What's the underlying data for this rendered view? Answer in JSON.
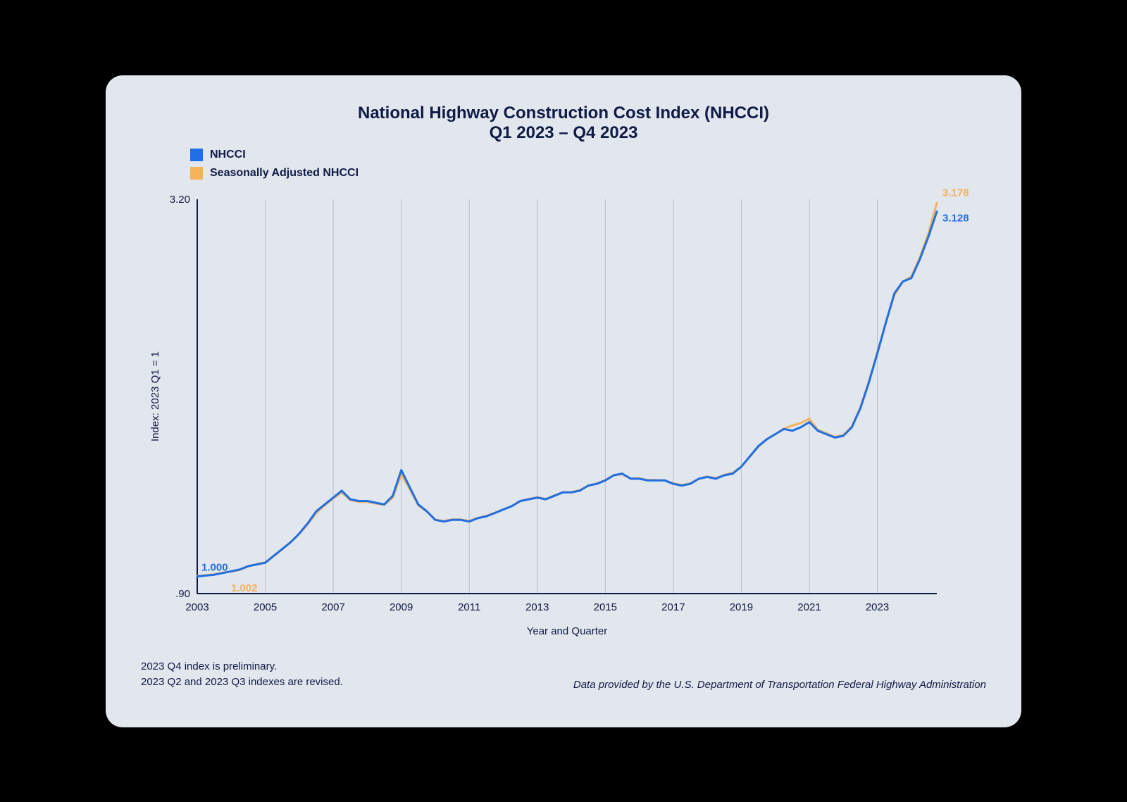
{
  "title": {
    "line1": "National Highway Construction Cost Index (NHCCI)",
    "line2": "Q1 2023 – Q4 2023",
    "fontsize": 24,
    "color": "#0f1b47"
  },
  "legend": {
    "items": [
      {
        "label": "NHCCI",
        "color": "#1f6fe5"
      },
      {
        "label": "Seasonally Adjusted NHCCI",
        "color": "#f4b25a"
      }
    ]
  },
  "chart": {
    "type": "line",
    "background_color": "#e2e6ed",
    "axis_color": "#0f1b47",
    "grid_color": "#b8bfca",
    "axis_width": 2,
    "grid_width": 1,
    "line_width": 3,
    "series_colors": {
      "nhcci": "#1f6fe5",
      "sa": "#f4b25a"
    },
    "ylabel": "Index: 2023 Q1 = 1",
    "xlabel": "Year and Quarter",
    "label_fontsize": 15,
    "label_color": "#0f1b47",
    "tick_fontsize": 15,
    "tick_color": "#0f1b47",
    "ylim": [
      0.9,
      3.2
    ],
    "yticks": [
      0.9,
      3.2
    ],
    "ytick_labels": [
      ".90",
      "3.20"
    ],
    "x_start_year": 2003,
    "x_end_year_q": 2023.75,
    "xticks": [
      2003,
      2005,
      2007,
      2009,
      2011,
      2013,
      2015,
      2017,
      2019,
      2021,
      2023
    ],
    "start_labels": {
      "nhcci": "1.000",
      "sa": "1.002"
    },
    "end_labels": {
      "nhcci": "3.128",
      "sa": "3.178"
    },
    "end_label_colors": {
      "nhcci": "#1f6fe5",
      "sa": "#f4b25a"
    },
    "series": {
      "nhcci": [
        1.0,
        1.005,
        1.01,
        1.02,
        1.03,
        1.04,
        1.06,
        1.07,
        1.08,
        1.12,
        1.16,
        1.2,
        1.25,
        1.31,
        1.38,
        1.42,
        1.46,
        1.5,
        1.45,
        1.44,
        1.44,
        1.43,
        1.42,
        1.47,
        1.62,
        1.52,
        1.42,
        1.38,
        1.33,
        1.32,
        1.33,
        1.33,
        1.32,
        1.34,
        1.35,
        1.37,
        1.39,
        1.41,
        1.44,
        1.45,
        1.46,
        1.45,
        1.47,
        1.49,
        1.49,
        1.5,
        1.53,
        1.54,
        1.56,
        1.59,
        1.6,
        1.57,
        1.57,
        1.56,
        1.56,
        1.56,
        1.54,
        1.53,
        1.54,
        1.57,
        1.58,
        1.57,
        1.59,
        1.6,
        1.64,
        1.7,
        1.76,
        1.8,
        1.83,
        1.86,
        1.85,
        1.87,
        1.9,
        1.85,
        1.83,
        1.81,
        1.82,
        1.87,
        1.98,
        2.13,
        2.3,
        2.48,
        2.65,
        2.72,
        2.74,
        2.85,
        2.98,
        3.128
      ],
      "sa": [
        1.002,
        1.007,
        1.012,
        1.022,
        1.028,
        1.038,
        1.058,
        1.072,
        1.082,
        1.118,
        1.158,
        1.202,
        1.248,
        1.305,
        1.37,
        1.415,
        1.455,
        1.49,
        1.445,
        1.435,
        1.435,
        1.425,
        1.418,
        1.46,
        1.595,
        1.51,
        1.415,
        1.378,
        1.332,
        1.323,
        1.333,
        1.332,
        1.324,
        1.341,
        1.353,
        1.371,
        1.391,
        1.411,
        1.438,
        1.452,
        1.461,
        1.452,
        1.472,
        1.491,
        1.492,
        1.503,
        1.53,
        1.542,
        1.562,
        1.592,
        1.595,
        1.572,
        1.572,
        1.562,
        1.562,
        1.56,
        1.543,
        1.533,
        1.543,
        1.57,
        1.583,
        1.574,
        1.592,
        1.605,
        1.64,
        1.698,
        1.755,
        1.802,
        1.83,
        1.862,
        1.88,
        1.895,
        1.92,
        1.855,
        1.835,
        1.814,
        1.825,
        1.874,
        1.985,
        2.135,
        2.305,
        2.48,
        2.64,
        2.72,
        2.75,
        2.86,
        3.0,
        3.178
      ]
    }
  },
  "footer": {
    "notes": [
      "2023 Q4 index is preliminary.",
      "2023 Q2 and 2023 Q3 indexes are revised."
    ],
    "attribution": "Data provided by the U.S. Department of Transportation Federal Highway Administration"
  }
}
